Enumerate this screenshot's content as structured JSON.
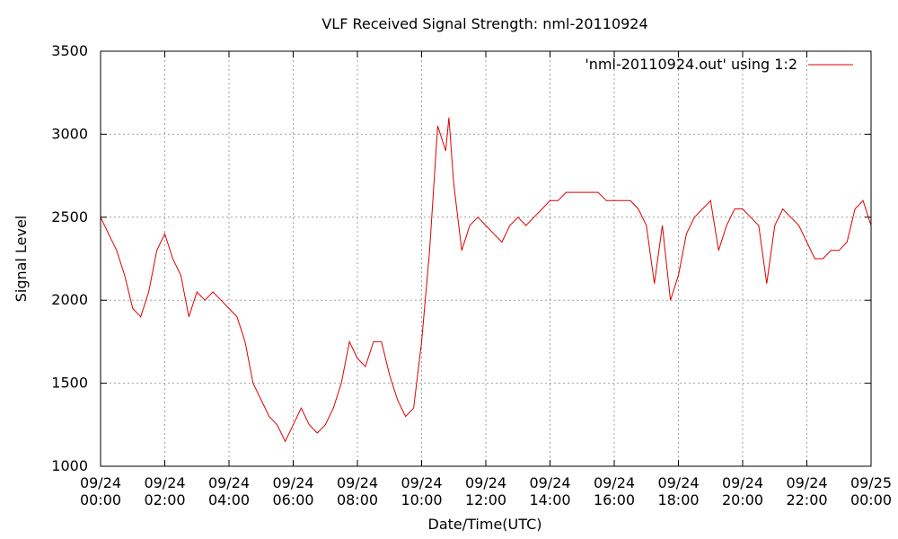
{
  "chart_data": {
    "type": "line",
    "title": "VLF Received Signal Strength: nml-20110924",
    "xlabel": "Date/Time(UTC)",
    "ylabel": "Signal Level",
    "ylim": [
      1000,
      3500
    ],
    "xlim_hours": [
      0,
      24
    ],
    "grid": true,
    "legend_position": "top-right",
    "y_ticks": [
      "1000",
      "1500",
      "2000",
      "2500",
      "3000",
      "3500"
    ],
    "x_ticks": [
      {
        "date": "09/24",
        "time": "00:00"
      },
      {
        "date": "09/24",
        "time": "02:00"
      },
      {
        "date": "09/24",
        "time": "04:00"
      },
      {
        "date": "09/24",
        "time": "06:00"
      },
      {
        "date": "09/24",
        "time": "08:00"
      },
      {
        "date": "09/24",
        "time": "10:00"
      },
      {
        "date": "09/24",
        "time": "12:00"
      },
      {
        "date": "09/24",
        "time": "14:00"
      },
      {
        "date": "09/24",
        "time": "16:00"
      },
      {
        "date": "09/24",
        "time": "18:00"
      },
      {
        "date": "09/24",
        "time": "20:00"
      },
      {
        "date": "09/24",
        "time": "22:00"
      },
      {
        "date": "09/25",
        "time": "00:00"
      }
    ],
    "series": [
      {
        "name": "'nml-20110924.out' using 1:2",
        "color": "#dd0000",
        "x": [
          0.0,
          0.25,
          0.5,
          0.75,
          1.0,
          1.25,
          1.5,
          1.75,
          2.0,
          2.25,
          2.5,
          2.75,
          3.0,
          3.25,
          3.5,
          3.75,
          4.0,
          4.25,
          4.5,
          4.75,
          5.0,
          5.25,
          5.5,
          5.75,
          6.0,
          6.25,
          6.5,
          6.75,
          7.0,
          7.25,
          7.5,
          7.75,
          8.0,
          8.25,
          8.5,
          8.75,
          9.0,
          9.25,
          9.5,
          9.75,
          10.0,
          10.25,
          10.5,
          10.75,
          10.85,
          11.0,
          11.25,
          11.5,
          11.75,
          12.0,
          12.25,
          12.5,
          12.75,
          13.0,
          13.25,
          13.5,
          13.75,
          14.0,
          14.25,
          14.5,
          14.75,
          15.0,
          15.25,
          15.5,
          15.75,
          16.0,
          16.25,
          16.5,
          16.75,
          17.0,
          17.25,
          17.5,
          17.75,
          18.0,
          18.25,
          18.5,
          18.75,
          19.0,
          19.25,
          19.5,
          19.75,
          20.0,
          20.25,
          20.5,
          20.75,
          21.0,
          21.25,
          21.5,
          21.75,
          22.0,
          22.25,
          22.5,
          22.75,
          23.0,
          23.25,
          23.5,
          23.75,
          24.0
        ],
        "y": [
          2500,
          2400,
          2300,
          2150,
          1950,
          1900,
          2050,
          2300,
          2400,
          2250,
          2150,
          1900,
          2050,
          2000,
          2050,
          2000,
          1950,
          1900,
          1750,
          1500,
          1400,
          1300,
          1250,
          1150,
          1250,
          1350,
          1250,
          1200,
          1250,
          1350,
          1500,
          1750,
          1650,
          1600,
          1750,
          1750,
          1550,
          1400,
          1300,
          1350,
          1750,
          2300,
          3050,
          2900,
          3100,
          2700,
          2300,
          2450,
          2500,
          2450,
          2400,
          2350,
          2450,
          2500,
          2450,
          2500,
          2550,
          2600,
          2600,
          2650,
          2650,
          2650,
          2650,
          2650,
          2600,
          2600,
          2600,
          2600,
          2550,
          2450,
          2100,
          2450,
          2000,
          2150,
          2400,
          2500,
          2550,
          2600,
          2300,
          2450,
          2550,
          2550,
          2500,
          2450,
          2100,
          2450,
          2550,
          2500,
          2450,
          2350,
          2250,
          2250,
          2300,
          2300,
          2350,
          2550,
          2600,
          2450
        ]
      }
    ]
  }
}
